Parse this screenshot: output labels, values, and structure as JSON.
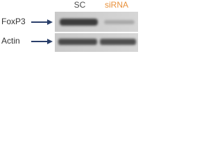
{
  "lanes": [
    "SC",
    "siRNA"
  ],
  "rows": [
    "FoxP3",
    "Actin"
  ]
}
